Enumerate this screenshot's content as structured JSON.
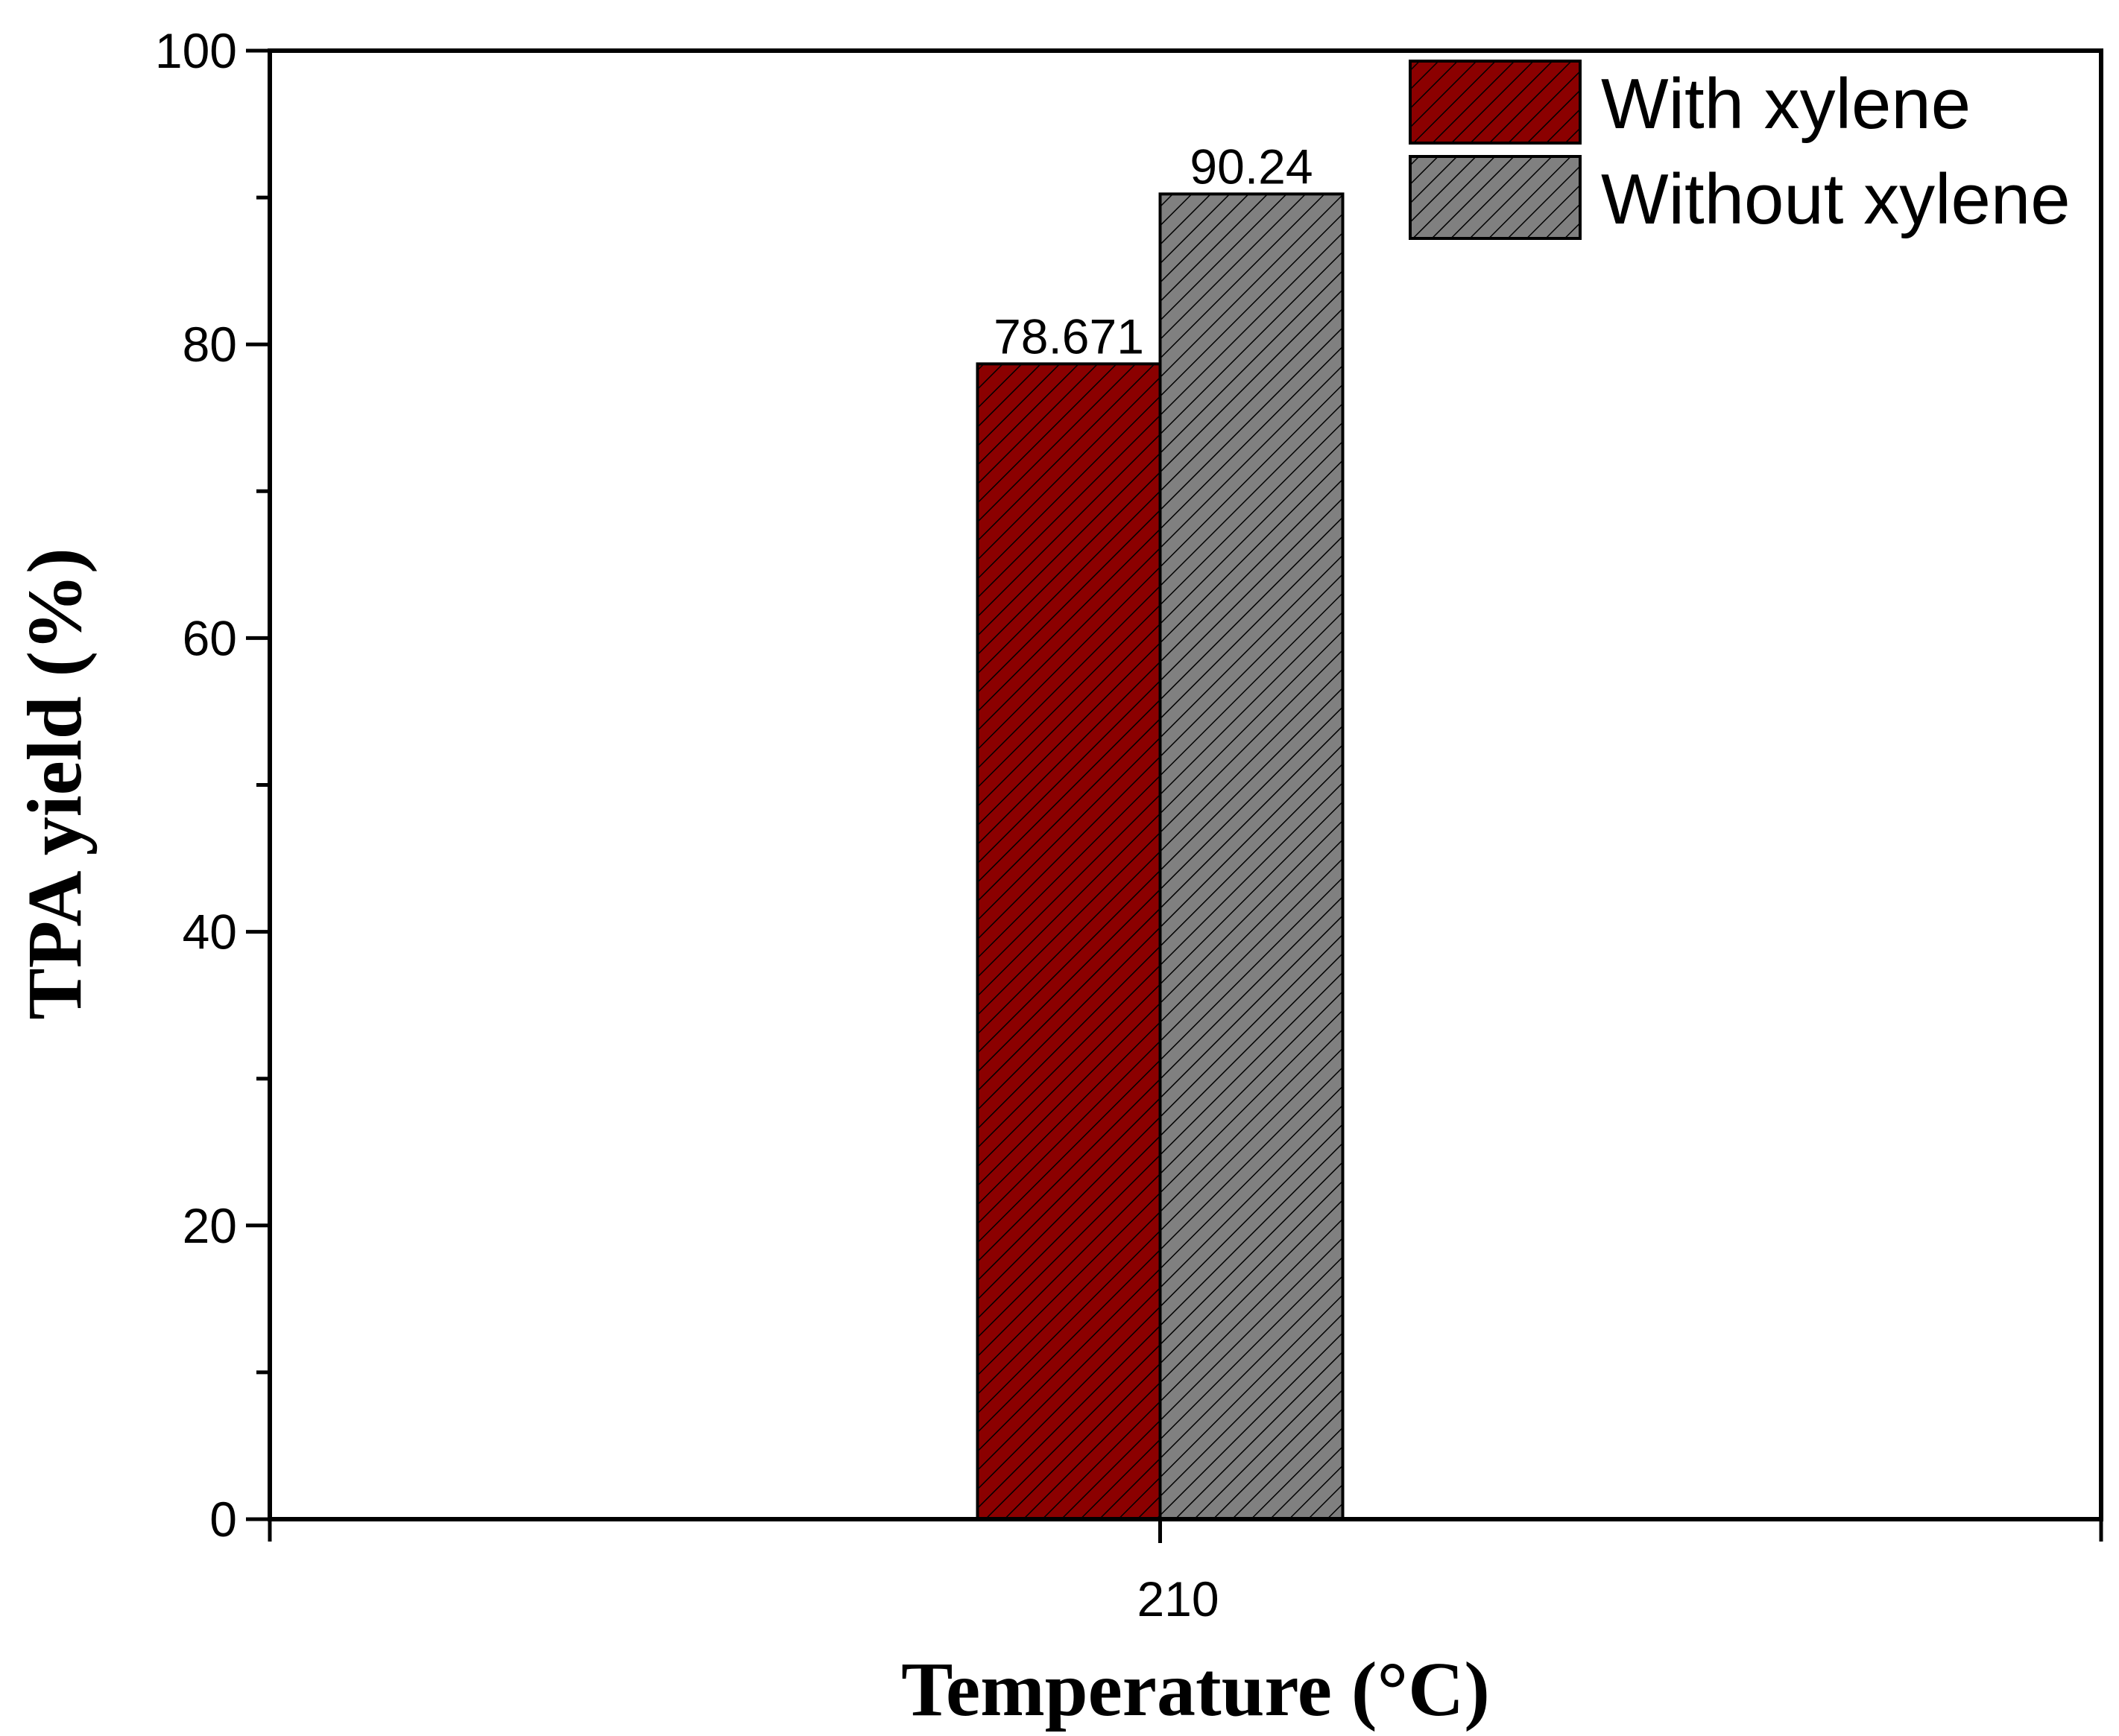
{
  "chart_data": {
    "type": "bar",
    "categories": [
      "210"
    ],
    "series": [
      {
        "name": "With xylene",
        "values": [
          78.671
        ],
        "color": "#8b0000",
        "data_label": "78.671"
      },
      {
        "name": "Without xylene",
        "values": [
          90.24
        ],
        "color": "#808080",
        "data_label": "90.24"
      }
    ],
    "xlabel": "Temperature (°C)",
    "ylabel": "TPA yield (%)",
    "ylim": [
      0,
      100
    ],
    "y_ticks": [
      "0",
      "20",
      "40",
      "60",
      "80",
      "100"
    ],
    "y_minor_step": 10,
    "legend_position": "top-right",
    "hatch": "diagonal",
    "grid": false
  }
}
